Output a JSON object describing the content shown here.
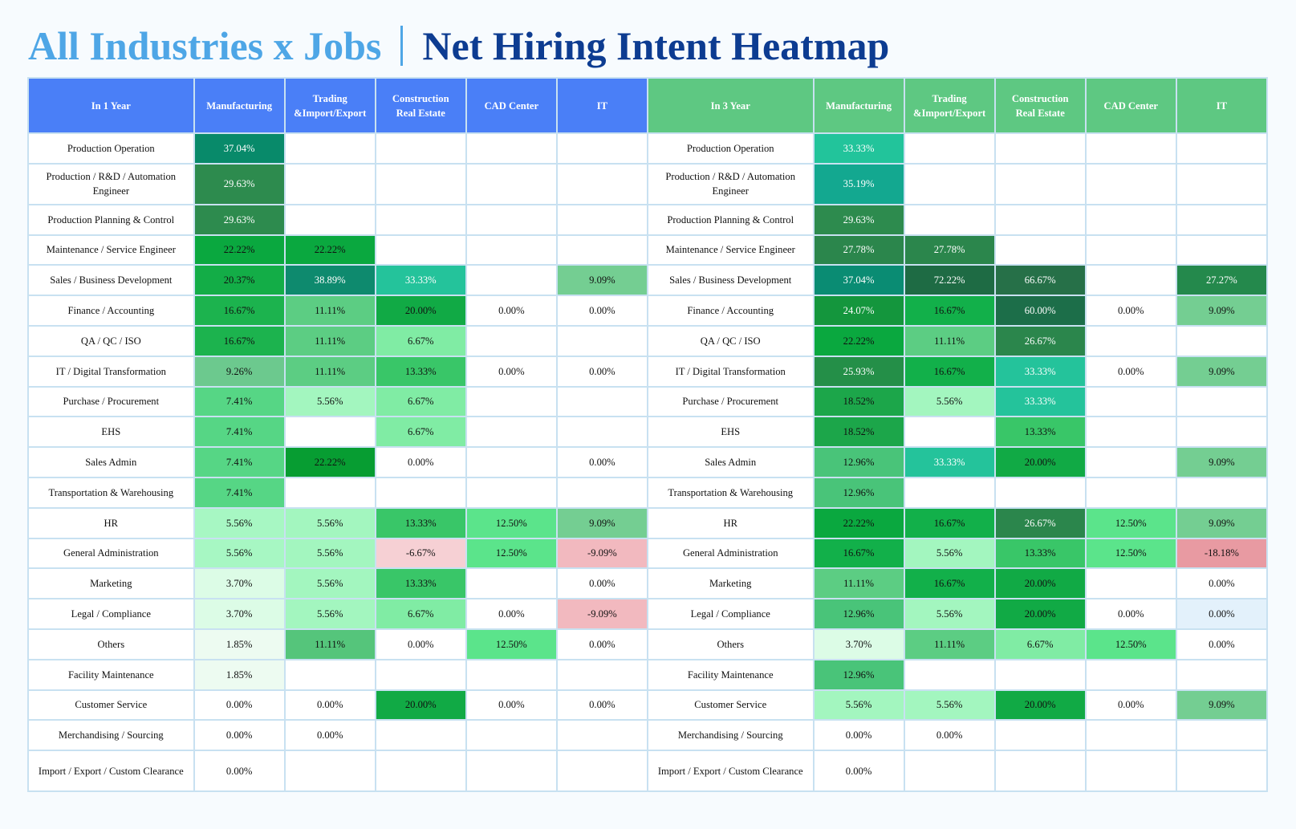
{
  "title": {
    "left": "All Industries x Jobs",
    "right": "Net Hiring Intent Heatmap"
  },
  "chart_data": {
    "type": "heatmap",
    "title": "All Industries x Jobs | Net Hiring Intent Heatmap",
    "value_unit": "%",
    "rows": [
      "Production Operation",
      "Production / R&D / Automation Engineer",
      "Production Planning & Control",
      "Maintenance / Service Engineer",
      "Sales / Business Development",
      "Finance / Accounting",
      "QA / QC / ISO",
      "IT / Digital Transformation",
      "Purchase / Procurement",
      "EHS",
      "Sales Admin",
      "Transportation & Warehousing",
      "HR",
      "General Administration",
      "Marketing",
      "Legal / Compliance",
      "Others",
      "Facility Maintenance",
      "Customer Service",
      "Merchandising / Sourcing",
      "Import / Export / Custom Clearance"
    ],
    "columns": [
      "Manufacturing",
      "Trading &Import/Export",
      "Construction Real Estate",
      "CAD Center",
      "IT"
    ],
    "column_labels": [
      [
        "Manufacturing"
      ],
      [
        "Trading",
        "&Import/Export"
      ],
      [
        "Construction",
        "Real Estate"
      ],
      [
        "CAD Center"
      ],
      [
        "IT"
      ]
    ],
    "panels": [
      {
        "name": "In 1 Year",
        "header_color": "#4a7ff7",
        "values": [
          [
            37.04,
            null,
            null,
            null,
            null
          ],
          [
            29.63,
            null,
            null,
            null,
            null
          ],
          [
            29.63,
            null,
            null,
            null,
            null
          ],
          [
            22.22,
            22.22,
            null,
            null,
            null
          ],
          [
            20.37,
            38.89,
            33.33,
            null,
            9.09
          ],
          [
            16.67,
            11.11,
            20.0,
            0.0,
            0.0
          ],
          [
            16.67,
            11.11,
            6.67,
            null,
            null
          ],
          [
            9.26,
            11.11,
            13.33,
            0.0,
            0.0
          ],
          [
            7.41,
            5.56,
            6.67,
            null,
            null
          ],
          [
            7.41,
            null,
            6.67,
            null,
            null
          ],
          [
            7.41,
            22.22,
            0.0,
            null,
            0.0
          ],
          [
            7.41,
            null,
            null,
            null,
            null
          ],
          [
            5.56,
            5.56,
            13.33,
            12.5,
            9.09
          ],
          [
            5.56,
            5.56,
            -6.67,
            12.5,
            -9.09
          ],
          [
            3.7,
            5.56,
            13.33,
            null,
            0.0
          ],
          [
            3.7,
            5.56,
            6.67,
            0.0,
            -9.09
          ],
          [
            1.85,
            11.11,
            0.0,
            12.5,
            0.0
          ],
          [
            1.85,
            null,
            null,
            null,
            null
          ],
          [
            0.0,
            0.0,
            20.0,
            0.0,
            0.0
          ],
          [
            0.0,
            0.0,
            null,
            null,
            null
          ],
          [
            0.0,
            null,
            null,
            null,
            null
          ]
        ],
        "colors": [
          [
            "#088a6a",
            null,
            null,
            null,
            null
          ],
          [
            "#2d8b4e",
            null,
            null,
            null,
            null
          ],
          [
            "#2d8b4e",
            null,
            null,
            null,
            null
          ],
          [
            "#0aa83f",
            "#0aa83f",
            null,
            null,
            null
          ],
          [
            "#13ad47",
            "#0e8a6e",
            "#24c39b",
            null,
            "#74ce92"
          ],
          [
            "#1cb34e",
            "#5ccd83",
            "#11aa45",
            null,
            null
          ],
          [
            "#1cb34e",
            "#5ccd83",
            "#80eca4",
            null,
            null
          ],
          [
            "#6cc98e",
            "#5ccd83",
            "#39c668",
            null,
            null
          ],
          [
            "#56d685",
            "#a3f6bf",
            "#80eca4",
            null,
            null
          ],
          [
            "#56d685",
            null,
            "#80eca4",
            null,
            null
          ],
          [
            "#56d685",
            "#079d32",
            null,
            null,
            null
          ],
          [
            "#56d685",
            null,
            null,
            null,
            null
          ],
          [
            "#a7f7c3",
            "#a3f6bf",
            "#39c668",
            "#5be48b",
            "#74ce92"
          ],
          [
            "#a7f7c3",
            "#a3f6bf",
            "#f6d0d4",
            "#5be48b",
            "#f2b9bf"
          ],
          [
            "#dcfce6",
            "#a3f6bf",
            "#39c668",
            null,
            null
          ],
          [
            "#dcfce6",
            "#a3f6bf",
            "#80eca4",
            null,
            "#f2b9bf"
          ],
          [
            "#edfbf1",
            "#55c57b",
            null,
            "#5be48b",
            null
          ],
          [
            "#edfbf1",
            null,
            null,
            null,
            null
          ],
          [
            null,
            null,
            "#11aa45",
            null,
            null
          ],
          [
            null,
            null,
            null,
            null,
            null
          ],
          [
            null,
            null,
            null,
            null,
            null
          ]
        ],
        "light_text": [
          [
            true,
            false,
            false,
            false,
            false
          ],
          [
            true,
            false,
            false,
            false,
            false
          ],
          [
            true,
            false,
            false,
            false,
            false
          ],
          [
            false,
            false,
            false,
            false,
            false
          ],
          [
            false,
            true,
            true,
            false,
            false
          ],
          [
            false,
            false,
            false,
            false,
            false
          ],
          [
            false,
            false,
            false,
            false,
            false
          ],
          [
            false,
            false,
            false,
            false,
            false
          ],
          [
            false,
            false,
            false,
            false,
            false
          ],
          [
            false,
            false,
            false,
            false,
            false
          ],
          [
            false,
            false,
            false,
            false,
            false
          ],
          [
            false,
            false,
            false,
            false,
            false
          ],
          [
            false,
            false,
            false,
            false,
            false
          ],
          [
            false,
            false,
            false,
            false,
            false
          ],
          [
            false,
            false,
            false,
            false,
            false
          ],
          [
            false,
            false,
            false,
            false,
            false
          ],
          [
            false,
            false,
            false,
            false,
            false
          ],
          [
            false,
            false,
            false,
            false,
            false
          ],
          [
            false,
            false,
            false,
            false,
            false
          ],
          [
            false,
            false,
            false,
            false,
            false
          ],
          [
            false,
            false,
            false,
            false,
            false
          ]
        ]
      },
      {
        "name": "In 3 Year",
        "header_color": "#5ec882",
        "values": [
          [
            33.33,
            null,
            null,
            null,
            null
          ],
          [
            35.19,
            null,
            null,
            null,
            null
          ],
          [
            29.63,
            null,
            null,
            null,
            null
          ],
          [
            27.78,
            27.78,
            null,
            null,
            null
          ],
          [
            37.04,
            72.22,
            66.67,
            null,
            27.27
          ],
          [
            24.07,
            16.67,
            60.0,
            0.0,
            9.09
          ],
          [
            22.22,
            11.11,
            26.67,
            null,
            null
          ],
          [
            25.93,
            16.67,
            33.33,
            0.0,
            9.09
          ],
          [
            18.52,
            5.56,
            33.33,
            null,
            null
          ],
          [
            18.52,
            null,
            13.33,
            null,
            null
          ],
          [
            12.96,
            33.33,
            20.0,
            null,
            9.09
          ],
          [
            12.96,
            null,
            null,
            null,
            null
          ],
          [
            22.22,
            16.67,
            26.67,
            12.5,
            9.09
          ],
          [
            16.67,
            5.56,
            13.33,
            12.5,
            -18.18
          ],
          [
            11.11,
            16.67,
            20.0,
            null,
            0.0
          ],
          [
            12.96,
            5.56,
            20.0,
            0.0,
            0.0
          ],
          [
            3.7,
            11.11,
            6.67,
            12.5,
            0.0
          ],
          [
            12.96,
            null,
            null,
            null,
            null
          ],
          [
            5.56,
            5.56,
            20.0,
            0.0,
            9.09
          ],
          [
            0.0,
            0.0,
            null,
            null,
            null
          ],
          [
            0.0,
            null,
            null,
            null,
            null
          ]
        ],
        "colors": [
          [
            "#22c49b",
            null,
            null,
            null,
            null
          ],
          [
            "#13a890",
            null,
            null,
            null,
            null
          ],
          [
            "#2d8b4e",
            null,
            null,
            null,
            null
          ],
          [
            "#2b864c",
            "#2b864c",
            null,
            null,
            null
          ],
          [
            "#0a8c73",
            "#1e6b44",
            "#267048",
            null,
            "#24894c"
          ],
          [
            "#14963d",
            "#12b04a",
            "#1c6e49",
            null,
            "#74ce92"
          ],
          [
            "#0aa83f",
            "#5ccd83",
            "#2b864c",
            null,
            null
          ],
          [
            "#248f48",
            "#12b04a",
            "#24c39b",
            null,
            "#74ce92"
          ],
          [
            "#1ca64a",
            "#a3f6bf",
            "#24c39b",
            null,
            null
          ],
          [
            "#1ca64a",
            null,
            "#39c668",
            null,
            null
          ],
          [
            "#49c479",
            "#24c39b",
            "#11aa45",
            null,
            "#74ce92"
          ],
          [
            "#49c479",
            null,
            null,
            null,
            null
          ],
          [
            "#0aa83f",
            "#12b04a",
            "#2b864c",
            "#5be48b",
            "#74ce92"
          ],
          [
            "#12b04a",
            "#a3f6bf",
            "#39c668",
            "#5be48b",
            "#e89aa2"
          ],
          [
            "#5ccd83",
            "#12b04a",
            "#11aa45",
            null,
            null
          ],
          [
            "#49c479",
            "#a3f6bf",
            "#11aa45",
            null,
            "#e3f1fb"
          ],
          [
            "#dcfce6",
            "#5ccd83",
            "#80eca4",
            "#5be48b",
            null
          ],
          [
            "#49c479",
            null,
            null,
            null,
            null
          ],
          [
            "#a3f6bf",
            "#a3f6bf",
            "#11aa45",
            null,
            "#74ce92"
          ],
          [
            null,
            null,
            null,
            null,
            null
          ],
          [
            null,
            null,
            null,
            null,
            null
          ]
        ],
        "light_text": [
          [
            true,
            false,
            false,
            false,
            false
          ],
          [
            true,
            false,
            false,
            false,
            false
          ],
          [
            true,
            false,
            false,
            false,
            false
          ],
          [
            true,
            true,
            false,
            false,
            false
          ],
          [
            true,
            true,
            true,
            false,
            true
          ],
          [
            true,
            false,
            true,
            false,
            false
          ],
          [
            false,
            false,
            true,
            false,
            false
          ],
          [
            true,
            false,
            true,
            false,
            false
          ],
          [
            false,
            false,
            true,
            false,
            false
          ],
          [
            false,
            false,
            false,
            false,
            false
          ],
          [
            false,
            true,
            false,
            false,
            false
          ],
          [
            false,
            false,
            false,
            false,
            false
          ],
          [
            false,
            false,
            true,
            false,
            false
          ],
          [
            false,
            false,
            false,
            false,
            false
          ],
          [
            false,
            false,
            false,
            false,
            false
          ],
          [
            false,
            false,
            false,
            false,
            false
          ],
          [
            false,
            false,
            false,
            false,
            false
          ],
          [
            false,
            false,
            false,
            false,
            false
          ],
          [
            false,
            false,
            false,
            false,
            false
          ],
          [
            false,
            false,
            false,
            false,
            false
          ],
          [
            false,
            false,
            false,
            false,
            false
          ]
        ]
      }
    ]
  }
}
